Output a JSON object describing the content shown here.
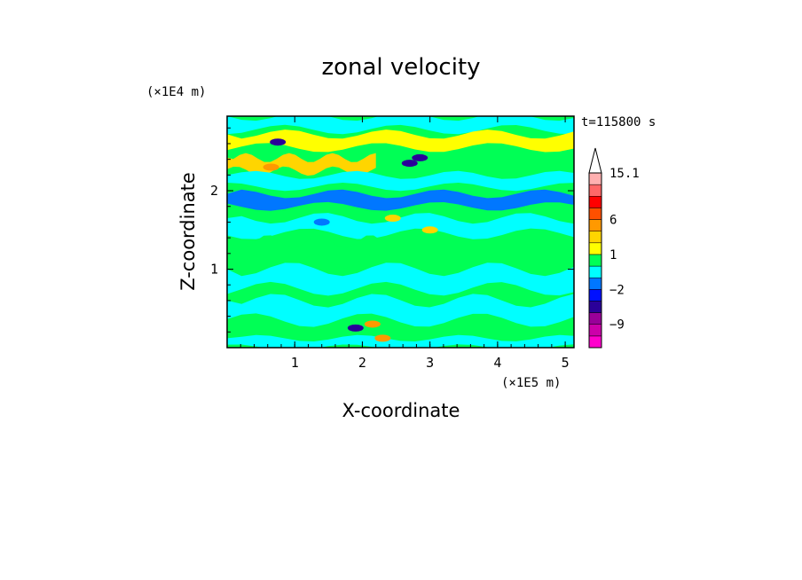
{
  "chart_data": {
    "type": "heatmap",
    "title": "zonal velocity",
    "xlabel": "X-coordinate",
    "ylabel": "Z-coordinate",
    "x_scale_label": "(×1E5 m)",
    "y_scale_label": "(×1E4 m)",
    "time_label": "t=115800 s",
    "xlim": [
      0,
      5.13
    ],
    "ylim": [
      0,
      2.95
    ],
    "x_ticks": [
      1,
      2,
      3,
      4,
      5
    ],
    "y_ticks": [
      1,
      2
    ],
    "colorbar": {
      "levels": [
        -15,
        -12,
        -9,
        -6,
        -3,
        -2,
        -1,
        0,
        1,
        2,
        3,
        6,
        9,
        12,
        15.1
      ],
      "labeled_levels": [
        {
          "value": 15.1,
          "text": "15.1"
        },
        {
          "value": 6,
          "text": "6"
        },
        {
          "value": 1,
          "text": "1"
        },
        {
          "value": -2,
          "text": "−2"
        },
        {
          "value": -9,
          "text": "−9"
        }
      ],
      "colors": [
        "#ff00cc",
        "#cc00aa",
        "#990099",
        "#2a0099",
        "#0010ff",
        "#0077ff",
        "#00ffff",
        "#00ff55",
        "#ffff00",
        "#ffd500",
        "#ff9900",
        "#ff5000",
        "#ff0000",
        "#ff6666",
        "#ffb0b0"
      ],
      "overflow_color": "#ffffff"
    },
    "field_pattern": {
      "background_level": 0.5,
      "bands": [
        {
          "x0": 0.0,
          "x1": 5.13,
          "z0": 2.78,
          "z1": 2.95,
          "value": -0.5
        },
        {
          "x0": 0.0,
          "x1": 5.13,
          "z0": 2.55,
          "z1": 2.72,
          "value": 1.5
        },
        {
          "x0": 0.0,
          "x1": 2.2,
          "z0": 2.25,
          "z1": 2.42,
          "value": 2.5
        },
        {
          "x0": 0.0,
          "x1": 5.13,
          "z0": 2.05,
          "z1": 2.2,
          "value": -0.5
        },
        {
          "x0": 0.0,
          "x1": 5.13,
          "z0": 1.8,
          "z1": 1.96,
          "value": -1.5
        },
        {
          "x0": 0.0,
          "x1": 5.13,
          "z0": 1.45,
          "z1": 1.65,
          "value": -0.5
        },
        {
          "x0": 0.0,
          "x1": 2.6,
          "z0": 1.1,
          "z1": 1.35,
          "value": 0.5
        },
        {
          "x0": 0.0,
          "x1": 5.13,
          "z0": 0.75,
          "z1": 1.0,
          "value": -0.5
        },
        {
          "x0": 0.0,
          "x1": 5.13,
          "z0": 0.35,
          "z1": 0.6,
          "value": -0.5
        },
        {
          "x0": 0.0,
          "x1": 5.13,
          "z0": 0.0,
          "z1": 0.12,
          "value": -0.5
        }
      ],
      "blobs": [
        {
          "x": 0.75,
          "z": 2.62,
          "value": -4
        },
        {
          "x": 2.85,
          "z": 2.42,
          "value": -4
        },
        {
          "x": 2.7,
          "z": 2.35,
          "value": -4
        },
        {
          "x": 0.65,
          "z": 2.3,
          "value": 4
        },
        {
          "x": 1.9,
          "z": 0.25,
          "value": -4
        },
        {
          "x": 2.15,
          "z": 0.3,
          "value": 4
        },
        {
          "x": 1.4,
          "z": 1.6,
          "value": -1.5
        },
        {
          "x": 3.0,
          "z": 1.5,
          "value": 2.5
        },
        {
          "x": 2.45,
          "z": 1.65,
          "value": 2.5
        },
        {
          "x": 2.3,
          "z": 0.12,
          "value": 4
        }
      ]
    }
  }
}
